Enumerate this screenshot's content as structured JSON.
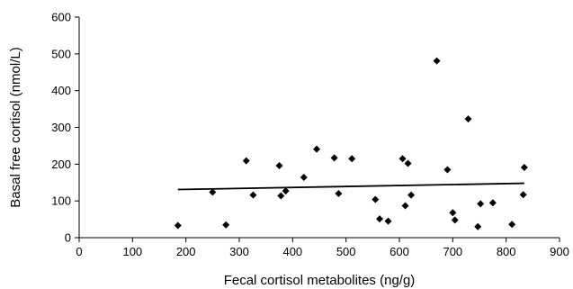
{
  "chart_data": {
    "type": "scatter",
    "title": "",
    "xlabel": "Fecal cortisol metabolites (ng/g)",
    "ylabel": "Basal free cortisol (nmol/L)",
    "xlim": [
      0,
      900
    ],
    "ylim": [
      0,
      600
    ],
    "x_ticks": [
      "0",
      "100",
      "200",
      "300",
      "400",
      "500",
      "600",
      "700",
      "800",
      "900"
    ],
    "y_ticks": [
      "0",
      "100",
      "200",
      "300",
      "400",
      "500",
      "600"
    ],
    "grid": false,
    "legend": "none",
    "marker": "diamond",
    "marker_color": "#000000",
    "points": [
      {
        "x": 185,
        "y": 33
      },
      {
        "x": 250,
        "y": 124
      },
      {
        "x": 275,
        "y": 35
      },
      {
        "x": 313,
        "y": 209
      },
      {
        "x": 326,
        "y": 116
      },
      {
        "x": 375,
        "y": 196
      },
      {
        "x": 378,
        "y": 114
      },
      {
        "x": 387,
        "y": 127
      },
      {
        "x": 421,
        "y": 164
      },
      {
        "x": 445,
        "y": 241
      },
      {
        "x": 478,
        "y": 217
      },
      {
        "x": 486,
        "y": 120
      },
      {
        "x": 511,
        "y": 215
      },
      {
        "x": 555,
        "y": 104
      },
      {
        "x": 563,
        "y": 51
      },
      {
        "x": 579,
        "y": 45
      },
      {
        "x": 606,
        "y": 215
      },
      {
        "x": 611,
        "y": 87
      },
      {
        "x": 616,
        "y": 202
      },
      {
        "x": 622,
        "y": 116
      },
      {
        "x": 670,
        "y": 481
      },
      {
        "x": 690,
        "y": 185
      },
      {
        "x": 700,
        "y": 68
      },
      {
        "x": 704,
        "y": 48
      },
      {
        "x": 729,
        "y": 323
      },
      {
        "x": 747,
        "y": 30
      },
      {
        "x": 752,
        "y": 92
      },
      {
        "x": 775,
        "y": 95
      },
      {
        "x": 811,
        "y": 36
      },
      {
        "x": 832,
        "y": 117
      },
      {
        "x": 834,
        "y": 191
      }
    ],
    "trendline": {
      "x": [
        185,
        834
      ],
      "y": [
        131,
        148
      ]
    }
  }
}
